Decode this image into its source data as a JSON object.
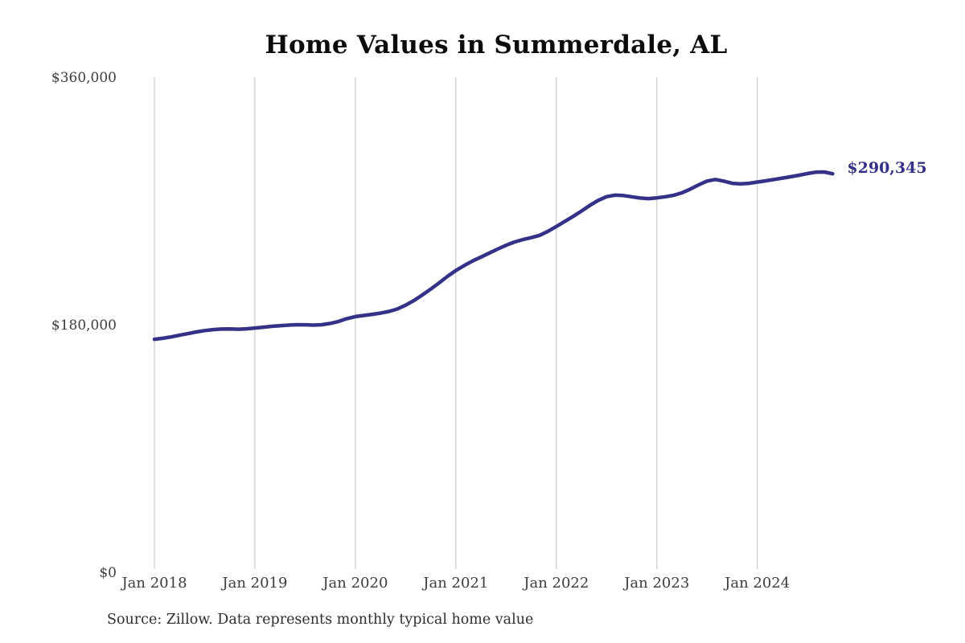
{
  "title": "Home Values in Summerdale, AL",
  "source_note": "Source: Zillow. Data represents monthly typical home value",
  "end_label": {
    "text": "$290,345",
    "color": "#333188"
  },
  "colors": {
    "background": "#ffffff",
    "line": "#333188",
    "grid": "#cccccc",
    "tick_text": "#3d3d3d",
    "title_text": "#0c0c0c"
  },
  "axes": {
    "y_ticks": [
      {
        "label": "$0",
        "value": 0
      },
      {
        "label": "$180,000",
        "value": 180000
      },
      {
        "label": "$360,000",
        "value": 360000
      }
    ],
    "x_ticks": [
      {
        "label": "Jan 2018",
        "month_index": 0
      },
      {
        "label": "Jan 2019",
        "month_index": 12
      },
      {
        "label": "Jan 2020",
        "month_index": 24
      },
      {
        "label": "Jan 2021",
        "month_index": 36
      },
      {
        "label": "Jan 2022",
        "month_index": 48
      },
      {
        "label": "Jan 2023",
        "month_index": 60
      },
      {
        "label": "Jan 2024",
        "month_index": 72
      }
    ]
  },
  "chart_data": {
    "type": "line",
    "title": "Home Values in Summerdale, AL",
    "xlabel": "",
    "ylabel": "",
    "ylim": [
      0,
      360000
    ],
    "grid": "vertical-only",
    "legend": "none",
    "line_color": "#333188",
    "grid_color": "#cccccc",
    "x_start": "2018-01",
    "x_end": "2024-10",
    "x_frequency": "monthly",
    "x_tick_labels": [
      "Jan 2018",
      "Jan 2019",
      "Jan 2020",
      "Jan 2021",
      "Jan 2022",
      "Jan 2023",
      "Jan 2024"
    ],
    "y_tick_labels": [
      "$0",
      "$180,000",
      "$360,000"
    ],
    "series": [
      {
        "name": "Monthly typical home value",
        "final_value": 290345,
        "final_value_label": "$290,345",
        "values": [
          170000,
          170700,
          171700,
          172900,
          174100,
          175300,
          176300,
          177000,
          177400,
          177500,
          177300,
          177600,
          178200,
          178800,
          179400,
          179900,
          180300,
          180600,
          180500,
          180300,
          180600,
          181500,
          183000,
          185000,
          186500,
          187300,
          188100,
          189000,
          190200,
          192000,
          194800,
          198200,
          202200,
          206500,
          211000,
          215700,
          220000,
          223600,
          226900,
          229800,
          232700,
          235600,
          238300,
          240700,
          242500,
          243900,
          245600,
          248500,
          252000,
          255600,
          259300,
          263200,
          267300,
          271000,
          273700,
          274800,
          274500,
          273600,
          272700,
          272300,
          272800,
          273600,
          274700,
          276500,
          279200,
          282300,
          285000,
          286200,
          285000,
          283400,
          283000,
          283400,
          284300,
          285200,
          286200,
          287200,
          288200,
          289300,
          290500,
          291500,
          291600,
          290345
        ]
      }
    ]
  }
}
